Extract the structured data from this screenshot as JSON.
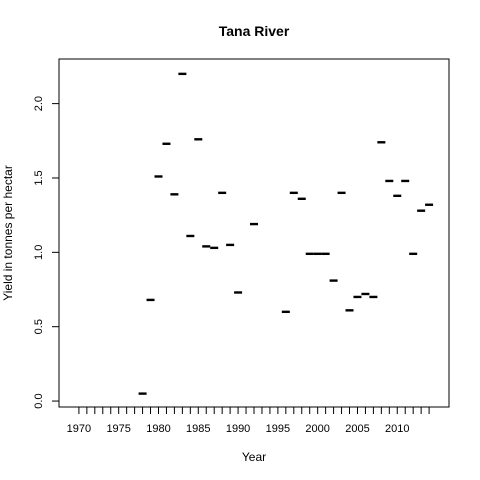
{
  "chart_data": {
    "type": "scatter",
    "title": "Tana River",
    "xlabel": "Year",
    "ylabel": "Yield in tonnes per hectar",
    "xlim": [
      1967.5,
      2016.5
    ],
    "ylim": [
      -0.04,
      2.3
    ],
    "x_ticks": [
      1970,
      1971,
      1972,
      1973,
      1974,
      1975,
      1976,
      1977,
      1978,
      1979,
      1980,
      1981,
      1982,
      1983,
      1984,
      1985,
      1986,
      1987,
      1988,
      1989,
      1990,
      1991,
      1992,
      1993,
      1994,
      1995,
      1996,
      1997,
      1998,
      1999,
      2000,
      2001,
      2002,
      2003,
      2004,
      2005,
      2006,
      2007,
      2008,
      2009,
      2010,
      2011,
      2012,
      2013,
      2014
    ],
    "x_tick_labels": [
      "1970",
      "1975",
      "1980",
      "1985",
      "1990",
      "1995",
      "2000",
      "2005",
      "2010"
    ],
    "y_ticks": [
      0.0,
      0.5,
      1.0,
      1.5,
      2.0
    ],
    "y_tick_labels": [
      "0.0",
      "0.5",
      "1.0",
      "1.5",
      "2.0"
    ],
    "grid": false,
    "series": [
      {
        "x": [
          1978,
          1979,
          1980,
          1981,
          1982,
          1983,
          1984,
          1985,
          1986,
          1987,
          1988,
          1989,
          1990,
          1992,
          1996,
          1997,
          1998,
          1999,
          2000,
          2001,
          2002,
          2003,
          2004,
          2005,
          2006,
          2007,
          2008,
          2009,
          2010,
          2011,
          2012,
          2013,
          2014
        ],
        "y": [
          0.05,
          0.68,
          1.51,
          1.73,
          1.39,
          2.2,
          1.11,
          1.76,
          1.04,
          1.03,
          1.4,
          1.05,
          0.73,
          1.19,
          0.6,
          1.4,
          1.36,
          0.99,
          0.99,
          0.99,
          0.81,
          1.4,
          0.61,
          0.7,
          0.72,
          0.7,
          1.74,
          1.48,
          1.38,
          1.48,
          0.99,
          1.28,
          1.32
        ]
      }
    ]
  }
}
